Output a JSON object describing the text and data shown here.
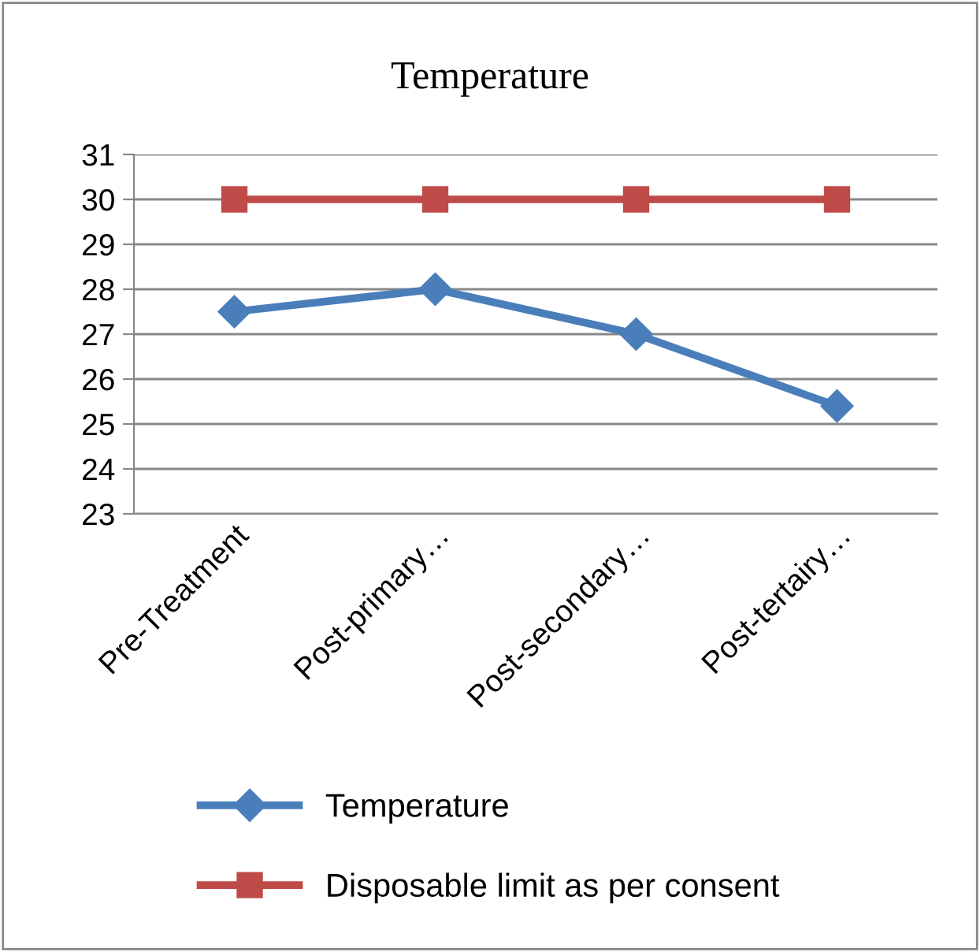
{
  "chart_data": {
    "type": "line",
    "title": "Temperature",
    "categories": [
      "Pre-Treatment",
      "Post-primary…",
      "Post-secondary…",
      "Post-tertairy…"
    ],
    "series": [
      {
        "name": "Temperature",
        "color": "#4a7ebb",
        "marker": "diamond",
        "values": [
          27.5,
          28,
          27,
          25.4
        ]
      },
      {
        "name": "Disposable limit as per consent",
        "color": "#be4b48",
        "marker": "square",
        "values": [
          30,
          30,
          30,
          30
        ]
      }
    ],
    "ylim": [
      23,
      31
    ],
    "yticks": [
      23,
      24,
      25,
      26,
      27,
      28,
      29,
      30,
      31
    ],
    "grid": "y",
    "legend": "bottom",
    "line_style": "solid"
  }
}
